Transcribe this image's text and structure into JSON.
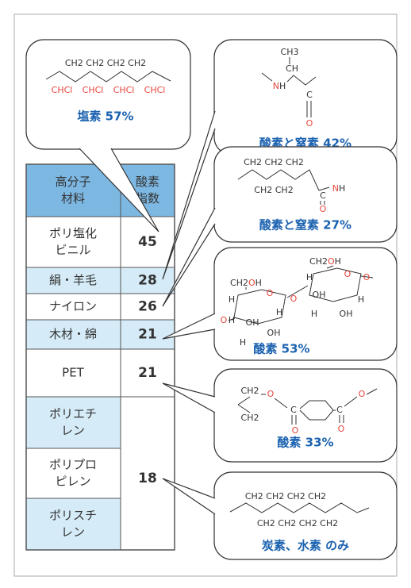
{
  "table": {
    "headers": [
      [
        "高分子",
        "材料"
      ],
      [
        "酸素",
        "指数"
      ]
    ],
    "rows": [
      {
        "material": [
          "ポリ塩化",
          "ビニル"
        ],
        "index": 45
      },
      {
        "material": [
          "絹・羊毛"
        ],
        "index": 28
      },
      {
        "material": [
          "ナイロン"
        ],
        "index": 26
      },
      {
        "material": [
          "木材・綿"
        ],
        "index": 21
      },
      {
        "material": [
          "PET"
        ],
        "index": 21
      }
    ],
    "group": {
      "materials": [
        [
          "ポリエチ",
          "レン"
        ],
        [
          "ポリプロ",
          "ピレン"
        ],
        [
          "ポリスチ",
          "レン"
        ]
      ],
      "index": 18
    }
  },
  "bubbles": [
    {
      "caption": "塩素 57%",
      "atoms": [
        [
          {
            "text": "CH2 CH2 CH2 CH2",
            "color": "#333"
          }
        ],
        [
          {
            "text": "CH",
            "color": "#e8453c"
          },
          {
            "text": "Cl",
            "color": "#e8453c"
          }
        ],
        [
          {
            "text": "CH",
            "color": "#e8453c"
          },
          {
            "text": "Cl",
            "color": "#e8453c"
          }
        ],
        [
          {
            "text": "CH",
            "color": "#e8453c"
          },
          {
            "text": "Cl",
            "color": "#e8453c"
          }
        ],
        [
          {
            "text": "CH",
            "color": "#e8453c"
          },
          {
            "text": "Cl",
            "color": "#e8453c"
          }
        ]
      ]
    },
    {
      "caption": "酸素と窒素 42%",
      "atoms": [
        [
          {
            "text": "CH3",
            "color": "#333"
          }
        ],
        [
          {
            "text": "CH",
            "color": "#333"
          }
        ],
        [
          {
            "text": "N",
            "color": "#e8453c"
          },
          {
            "text": "H",
            "color": "#333"
          }
        ],
        [
          {
            "text": "C",
            "color": "#333"
          }
        ],
        [
          {
            "text": "O",
            "color": "#e8453c"
          }
        ]
      ]
    },
    {
      "caption": "酸素と窒素 27%",
      "atoms": [
        [
          {
            "text": "CH2 CH2 CH2",
            "color": "#333"
          }
        ],
        [
          {
            "text": "CH2 CH2",
            "color": "#333"
          }
        ],
        [
          {
            "text": "N",
            "color": "#e8453c"
          },
          {
            "text": "H",
            "color": "#333"
          }
        ],
        [
          {
            "text": "C",
            "color": "#333"
          }
        ],
        [
          {
            "text": "O",
            "color": "#e8453c"
          }
        ]
      ]
    },
    {
      "caption": "酸素 53%",
      "atoms": [
        [
          {
            "text": "CH2",
            "color": "#333"
          },
          {
            "text": "O",
            "color": "#e8453c"
          },
          {
            "text": "H",
            "color": "#333"
          }
        ],
        [
          {
            "text": "O",
            "color": "#e8453c"
          }
        ],
        [
          {
            "text": "H",
            "color": "#333"
          }
        ],
        [
          {
            "text": "H",
            "color": "#333"
          }
        ],
        [
          {
            "text": "O",
            "color": "#e8453c"
          }
        ],
        [
          {
            "text": "OH",
            "color": "#333"
          }
        ],
        [
          {
            "text": "H",
            "color": "#333"
          }
        ],
        [
          {
            "text": "OH",
            "color": "#333"
          }
        ],
        [
          {
            "text": "H",
            "color": "#333"
          }
        ],
        [
          {
            "text": "O",
            "color": "#e8453c"
          }
        ],
        [
          {
            "text": "CH2",
            "color": "#333"
          },
          {
            "text": "O",
            "color": "#e8453c"
          },
          {
            "text": "H",
            "color": "#333"
          }
        ],
        [
          {
            "text": "O",
            "color": "#e8453c"
          }
        ],
        [
          {
            "text": "H",
            "color": "#333"
          }
        ],
        [
          {
            "text": "OH",
            "color": "#333"
          }
        ],
        [
          {
            "text": "H",
            "color": "#333"
          }
        ],
        [
          {
            "text": "OH",
            "color": "#333"
          }
        ],
        [
          {
            "text": "H",
            "color": "#333"
          }
        ],
        [
          {
            "text": "O",
            "color": "#e8453c"
          }
        ]
      ]
    },
    {
      "caption": "酸素 33%",
      "atoms": [
        [
          {
            "text": "CH2",
            "color": "#333"
          }
        ],
        [
          {
            "text": "CH2",
            "color": "#333"
          }
        ],
        [
          {
            "text": "O",
            "color": "#e8453c"
          }
        ],
        [
          {
            "text": "C",
            "color": "#333"
          }
        ],
        [
          {
            "text": "O",
            "color": "#e8453c"
          }
        ],
        [
          {
            "text": "C",
            "color": "#333"
          }
        ],
        [
          {
            "text": "O",
            "color": "#e8453c"
          }
        ],
        [
          {
            "text": "O",
            "color": "#e8453c"
          }
        ]
      ]
    },
    {
      "caption": "炭素、水素 のみ",
      "atoms": [
        [
          {
            "text": "CH2 CH2 CH2 CH2",
            "color": "#333"
          }
        ],
        [
          {
            "text": "CH2 CH2 CH2 CH2",
            "color": "#333"
          }
        ]
      ]
    }
  ]
}
